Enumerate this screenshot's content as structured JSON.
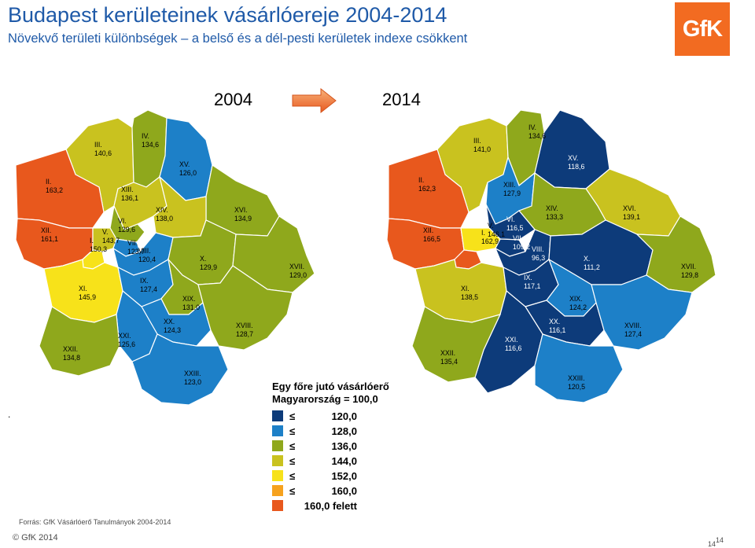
{
  "header": {
    "title": "Budapest kerületeinek vásárlóereje 2004-2014",
    "subtitle": "Növekvő területi különbségek – a belső és a dél-pesti kerületek indexe csökkent",
    "logo_text": "GfK"
  },
  "years": {
    "from": "2004",
    "to": "2014"
  },
  "legend": {
    "title": "Egy főre jutó vásárlóerő",
    "subtitle": "Magyarország = 100,0",
    "classes": [
      {
        "op": "≤",
        "value": "120,0",
        "color": "#0d3b7a"
      },
      {
        "op": "≤",
        "value": "128,0",
        "color": "#1d80c8"
      },
      {
        "op": "≤",
        "value": "136,0",
        "color": "#8fa81c"
      },
      {
        "op": "≤",
        "value": "144,0",
        "color": "#c9c21f"
      },
      {
        "op": "≤",
        "value": "152,0",
        "color": "#f7e21a"
      },
      {
        "op": "≤",
        "value": "160,0",
        "color": "#f6a21e"
      },
      {
        "op": "",
        "value": "160,0 felett",
        "color": "#e8581d"
      }
    ]
  },
  "maps": {
    "map_2004": {
      "districts": [
        {
          "name": "III.",
          "value": "140,6",
          "color": "#c9c21f"
        },
        {
          "name": "IV.",
          "value": "134,6",
          "color": "#8fa81c"
        },
        {
          "name": "II.",
          "value": "163,2",
          "color": "#e8581d"
        },
        {
          "name": "XV.",
          "value": "126,0",
          "color": "#1d80c8"
        },
        {
          "name": "XIII.",
          "value": "136,1",
          "color": "#c9c21f"
        },
        {
          "name": "XVI.",
          "value": "134,9",
          "color": "#8fa81c"
        },
        {
          "name": "XIV.",
          "value": "138,0",
          "color": "#c9c21f"
        },
        {
          "name": "XII.",
          "value": "161,1",
          "color": "#e8581d"
        },
        {
          "name": "VI.",
          "value": "129,6",
          "color": "#8fa81c"
        },
        {
          "name": "V.",
          "value": "143,7",
          "color": "#c9c21f"
        },
        {
          "name": "I.",
          "value": "150,3",
          "color": "#f7e21a"
        },
        {
          "name": "VII.",
          "value": "123,7",
          "color": "#1d80c8"
        },
        {
          "name": "VIII.",
          "value": "120,4",
          "color": "#1d80c8"
        },
        {
          "name": "X.",
          "value": "129,9",
          "color": "#8fa81c"
        },
        {
          "name": "XVII.",
          "value": "129,0",
          "color": "#8fa81c"
        },
        {
          "name": "XI.",
          "value": "145,9",
          "color": "#f7e21a"
        },
        {
          "name": "IX.",
          "value": "127,4",
          "color": "#1d80c8"
        },
        {
          "name": "XIX.",
          "value": "131,0",
          "color": "#8fa81c"
        },
        {
          "name": "XX.",
          "value": "124,3",
          "color": "#1d80c8"
        },
        {
          "name": "XVIII.",
          "value": "128,7",
          "color": "#8fa81c"
        },
        {
          "name": "XXI.",
          "value": "125,6",
          "color": "#1d80c8"
        },
        {
          "name": "XXII.",
          "value": "134,8",
          "color": "#8fa81c"
        },
        {
          "name": "XXIII.",
          "value": "123,0",
          "color": "#1d80c8"
        }
      ]
    },
    "map_2014": {
      "districts": [
        {
          "name": "III.",
          "value": "141,0",
          "color": "#c9c21f"
        },
        {
          "name": "IV.",
          "value": "134,6",
          "color": "#8fa81c"
        },
        {
          "name": "II.",
          "value": "162,3",
          "color": "#e8581d"
        },
        {
          "name": "XV.",
          "value": "118,6",
          "color": "#0d3b7a"
        },
        {
          "name": "XIII.",
          "value": "127,9",
          "color": "#1d80c8"
        },
        {
          "name": "XVI.",
          "value": "139,1",
          "color": "#c9c21f"
        },
        {
          "name": "XIV.",
          "value": "133,3",
          "color": "#8fa81c"
        },
        {
          "name": "XII.",
          "value": "166,5",
          "color": "#e8581d"
        },
        {
          "name": "VI.",
          "value": "116,5",
          "color": "#0d3b7a"
        },
        {
          "name": "V.",
          "value": "146,1",
          "color": "#f7e21a"
        },
        {
          "name": "I.",
          "value": "162,9",
          "color": "#e8581d"
        },
        {
          "name": "VII.",
          "value": "109,2",
          "color": "#0d3b7a"
        },
        {
          "name": "VIII.",
          "value": "96,3",
          "color": "#0d3b7a"
        },
        {
          "name": "X.",
          "value": "111,2",
          "color": "#0d3b7a"
        },
        {
          "name": "XVII.",
          "value": "129,8",
          "color": "#8fa81c"
        },
        {
          "name": "XI.",
          "value": "138,5",
          "color": "#c9c21f"
        },
        {
          "name": "IX.",
          "value": "117,1",
          "color": "#0d3b7a"
        },
        {
          "name": "XIX.",
          "value": "124,2",
          "color": "#1d80c8"
        },
        {
          "name": "XX.",
          "value": "116,1",
          "color": "#0d3b7a"
        },
        {
          "name": "XVIII.",
          "value": "127,4",
          "color": "#1d80c8"
        },
        {
          "name": "XXI.",
          "value": "116,6",
          "color": "#0d3b7a"
        },
        {
          "name": "XXII.",
          "value": "135,4",
          "color": "#8fa81c"
        },
        {
          "name": "XXIII.",
          "value": "120,5",
          "color": "#1d80c8"
        }
      ]
    }
  },
  "dot": ".",
  "source": "Forrás: GfK Vásárlóerő Tanulmányok 2004-2014",
  "footer": {
    "copyright": "© GfK 2014",
    "page_small": "14",
    "page": "14"
  }
}
